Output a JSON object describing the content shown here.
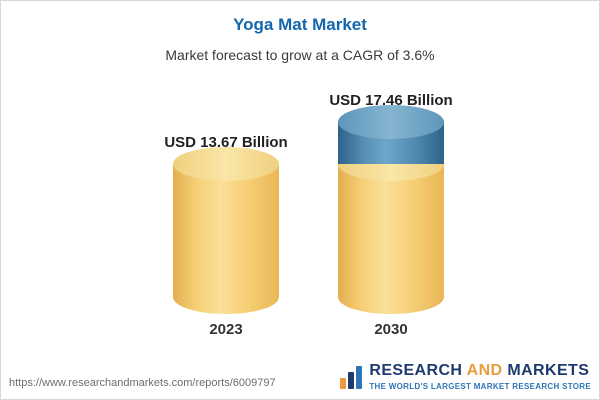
{
  "header": {
    "title": "Yoga Mat Market",
    "subtitle": "Market forecast to grow at a CAGR of 3.6%"
  },
  "chart_data": {
    "type": "bar",
    "subtype": "3d-cylinder-columns",
    "title": "Yoga Mat Market",
    "subtitle": "Market forecast to grow at a CAGR of 3.6%",
    "cagr": "3.6%",
    "unit": "USD Billion",
    "categories": [
      "2023",
      "2030"
    ],
    "values": [
      13.67,
      17.46
    ],
    "value_labels": [
      "USD 13.67 Billion",
      "USD 17.46 Billion"
    ],
    "ylim": [
      0,
      18
    ],
    "grid": false,
    "legend": false,
    "colors": {
      "bar_body": "#f6cf75",
      "bar_rim": "#fae6a8",
      "growth_cap_body": "#4e87ad",
      "growth_cap_rim": "#85b5d1"
    },
    "notes": "2030 column has a blue cap segment representing growth above the 2023 level"
  },
  "footer": {
    "url": "https://www.researchandmarkets.com/reports/6009797",
    "brand": {
      "research": "RESEARCH",
      "and": "AND",
      "markets": "MARKETS",
      "tagline": "THE WORLD'S LARGEST MARKET RESEARCH STORE"
    }
  }
}
